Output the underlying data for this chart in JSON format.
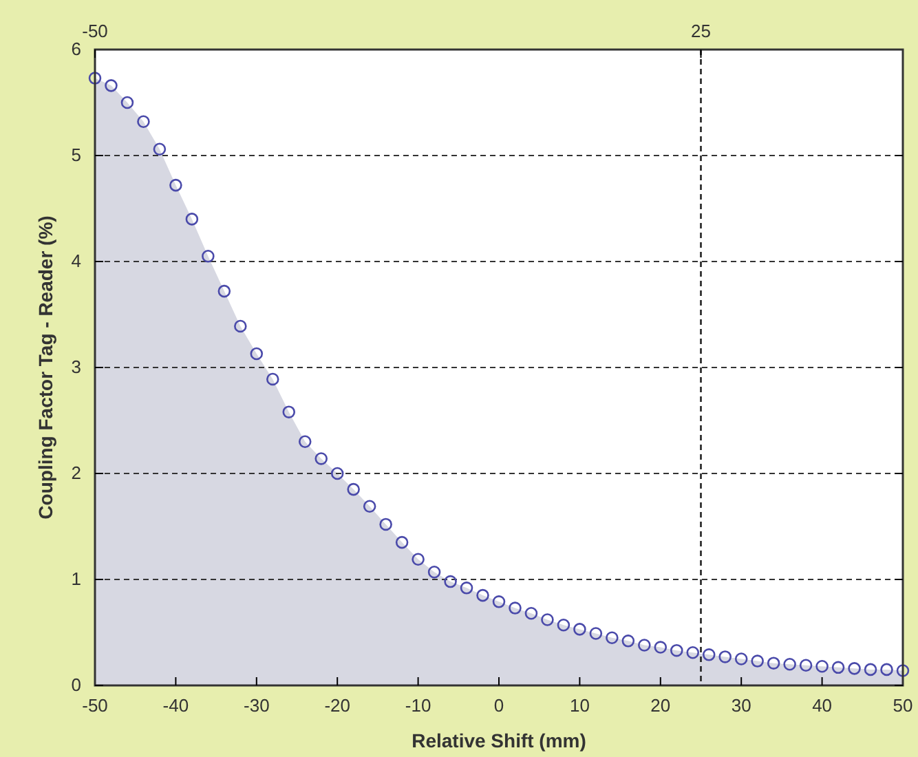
{
  "chart_data": {
    "type": "area",
    "xlabel": "Relative Shift (mm)",
    "ylabel": "Coupling Factor Tag - Reader (%)",
    "x": [
      -50,
      -48,
      -46,
      -44,
      -42,
      -40,
      -38,
      -36,
      -34,
      -32,
      -30,
      -28,
      -26,
      -24,
      -22,
      -20,
      -18,
      -16,
      -14,
      -12,
      -10,
      -8,
      -6,
      -4,
      -2,
      0,
      2,
      4,
      6,
      8,
      10,
      12,
      14,
      16,
      18,
      20,
      22,
      24,
      26,
      28,
      30,
      32,
      34,
      36,
      38,
      40,
      42,
      44,
      46,
      48,
      50
    ],
    "series": [
      {
        "color": "#4a4aaa",
        "values": [
          5.73,
          5.66,
          5.5,
          5.32,
          5.06,
          4.72,
          4.4,
          4.05,
          3.72,
          3.39,
          3.13,
          2.89,
          2.58,
          2.3,
          2.14,
          2.0,
          1.85,
          1.69,
          1.52,
          1.35,
          1.19,
          1.07,
          0.98,
          0.92,
          0.85,
          0.79,
          0.73,
          0.68,
          0.62,
          0.57,
          0.53,
          0.49,
          0.45,
          0.42,
          0.38,
          0.36,
          0.33,
          0.31,
          0.29,
          0.27,
          0.25,
          0.23,
          0.21,
          0.2,
          0.19,
          0.18,
          0.17,
          0.16,
          0.15,
          0.15,
          0.14
        ]
      }
    ],
    "xlim": [
      -50,
      50
    ],
    "xticks": [
      -50,
      -40,
      -30,
      -20,
      -10,
      0,
      10,
      20,
      30,
      40,
      50
    ],
    "ylim": [
      0,
      6
    ],
    "yticks": [
      0,
      1,
      2,
      3,
      4,
      5,
      6
    ],
    "x2lim": [
      -50,
      50
    ],
    "x2ticks": [
      -50,
      25
    ],
    "ref_lines": [
      {
        "axis": "x",
        "value": 25,
        "line_style": "dashed",
        "color": "#222222"
      }
    ],
    "grid": "y",
    "marker": "circle"
  }
}
